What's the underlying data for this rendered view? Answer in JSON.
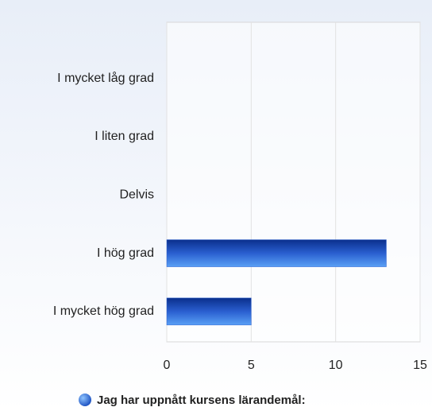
{
  "chart_data": {
    "type": "bar",
    "orientation": "horizontal",
    "categories": [
      "I mycket låg grad",
      "I liten grad",
      "Delvis",
      "I hög grad",
      "I mycket hög grad"
    ],
    "series": [
      {
        "name": "Jag har uppnått kursens lärandemål:",
        "color": "#2a5fd0",
        "values": [
          0,
          0,
          0,
          13,
          5
        ]
      }
    ],
    "xlim": [
      0,
      15
    ],
    "xticks": [
      0,
      5,
      10,
      15
    ],
    "grid": true,
    "legend": "bottom"
  }
}
